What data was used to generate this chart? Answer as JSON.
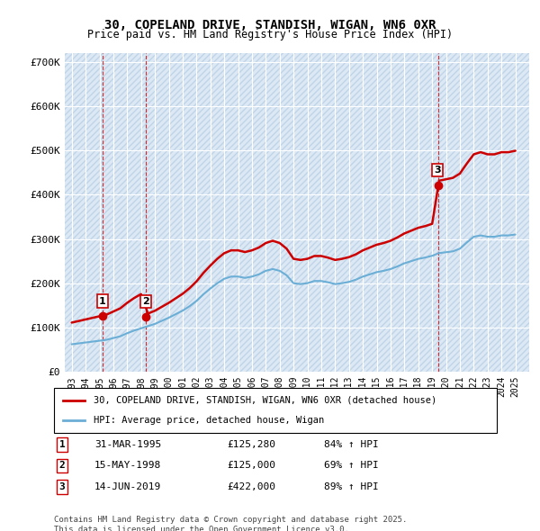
{
  "title": "30, COPELAND DRIVE, STANDISH, WIGAN, WN6 0XR",
  "subtitle": "Price paid vs. HM Land Registry's House Price Index (HPI)",
  "ylabel": "",
  "ylim": [
    0,
    720000
  ],
  "yticks": [
    0,
    100000,
    200000,
    300000,
    400000,
    500000,
    600000,
    700000
  ],
  "ytick_labels": [
    "£0",
    "£100K",
    "£200K",
    "£300K",
    "£400K",
    "£500K",
    "£600K",
    "£700K"
  ],
  "background_color": "#ffffff",
  "plot_bg_color": "#dce9f5",
  "hatch_color": "#c0d4e8",
  "grid_color": "#ffffff",
  "sale_points": [
    {
      "date_num": 1995.25,
      "price": 125280,
      "label": "1"
    },
    {
      "date_num": 1998.37,
      "price": 125000,
      "label": "2"
    },
    {
      "date_num": 2019.45,
      "price": 422000,
      "label": "3"
    }
  ],
  "vline_dates": [
    1995.25,
    1998.37,
    2019.45
  ],
  "legend_entries": [
    "30, COPELAND DRIVE, STANDISH, WIGAN, WN6 0XR (detached house)",
    "HPI: Average price, detached house, Wigan"
  ],
  "table_rows": [
    {
      "num": "1",
      "date": "31-MAR-1995",
      "price": "£125,280",
      "hpi": "84% ↑ HPI"
    },
    {
      "num": "2",
      "date": "15-MAY-1998",
      "price": "£125,000",
      "hpi": "69% ↑ HPI"
    },
    {
      "num": "3",
      "date": "14-JUN-2019",
      "price": "£422,000",
      "hpi": "89% ↑ HPI"
    }
  ],
  "footer": "Contains HM Land Registry data © Crown copyright and database right 2025.\nThis data is licensed under the Open Government Licence v3.0.",
  "red_line_color": "#cc0000",
  "blue_line_color": "#6baed6",
  "sale_marker_color": "#cc0000",
  "vline_color": "#cc0000",
  "xmin": 1992.5,
  "xmax": 2026.0
}
